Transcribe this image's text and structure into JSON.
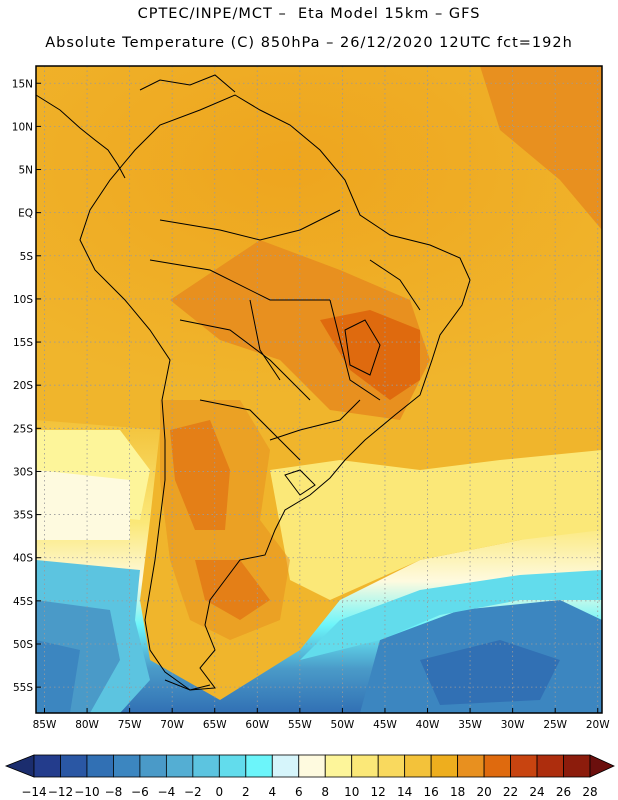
{
  "header": {
    "line1": "CPTEC/INPE/MCT –  Eta Model 15km – GFS",
    "line2": "Absolute Temperature (C) 850hPa – 26/12/2020 12UTC fct=192h"
  },
  "map": {
    "lat_labels": [
      "15N",
      "10N",
      "5N",
      "EQ",
      "5S",
      "10S",
      "15S",
      "20S",
      "25S",
      "30S",
      "35S",
      "40S",
      "45S",
      "50S",
      "55S"
    ],
    "lon_labels": [
      "85W",
      "80W",
      "75W",
      "70W",
      "65W",
      "60W",
      "55W",
      "50W",
      "45W",
      "40W",
      "35W",
      "30W",
      "25W",
      "20W"
    ]
  },
  "colorbar": {
    "labels": [
      "-14",
      "-12",
      "-10",
      "-8",
      "-6",
      "-4",
      "-2",
      "0",
      "2",
      "4",
      "6",
      "8",
      "10",
      "12",
      "14",
      "16",
      "18",
      "20",
      "22",
      "24",
      "26",
      "28"
    ],
    "colors": [
      "#233c8c",
      "#2a57a4",
      "#3170b4",
      "#3c86c0",
      "#4a9ac8",
      "#54aed3",
      "#5cc4e0",
      "#62dcec",
      "#6cf5fa",
      "#d6f5fb",
      "#fefadf",
      "#fdf59a",
      "#fbe878",
      "#f9d95e",
      "#f3c23a",
      "#eeae1e",
      "#e8901f",
      "#df6a0e",
      "#c84410",
      "#ad2d0d",
      "#8c1c0c"
    ],
    "left_arrow_color": "#1b2d6e",
    "right_arrow_color": "#6b0f0d"
  },
  "palette": {
    "frame": "#000000",
    "grid": "#9a9a9a",
    "coast": "#000000"
  }
}
